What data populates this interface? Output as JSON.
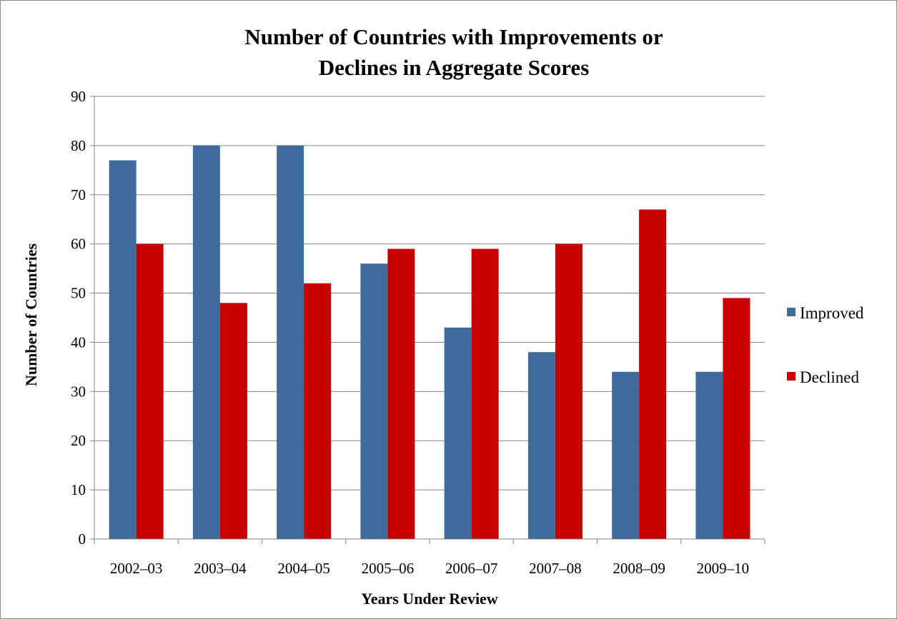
{
  "chart_data": {
    "type": "bar",
    "title_lines": [
      "Number of Countries with Improvements or",
      "Declines in Aggregate Scores"
    ],
    "xlabel": "Years Under Review",
    "ylabel": "Number of Countries",
    "categories": [
      "2002–03",
      "2003–04",
      "2004–05",
      "2005–06",
      "2006–07",
      "2007–08",
      "2008–09",
      "2009–10"
    ],
    "series": [
      {
        "name": "Improved",
        "color": "#3e6a9c",
        "values": [
          77,
          80,
          80,
          56,
          43,
          38,
          34,
          34
        ]
      },
      {
        "name": "Declined",
        "color": "#c80000",
        "values": [
          60,
          48,
          52,
          59,
          59,
          60,
          67,
          49
        ]
      }
    ],
    "ylim": [
      0,
      90
    ],
    "yticks": [
      "0",
      "10",
      "20",
      "30",
      "40",
      "50",
      "60",
      "70",
      "80",
      "90"
    ],
    "grid": true,
    "legend_position": "right"
  }
}
